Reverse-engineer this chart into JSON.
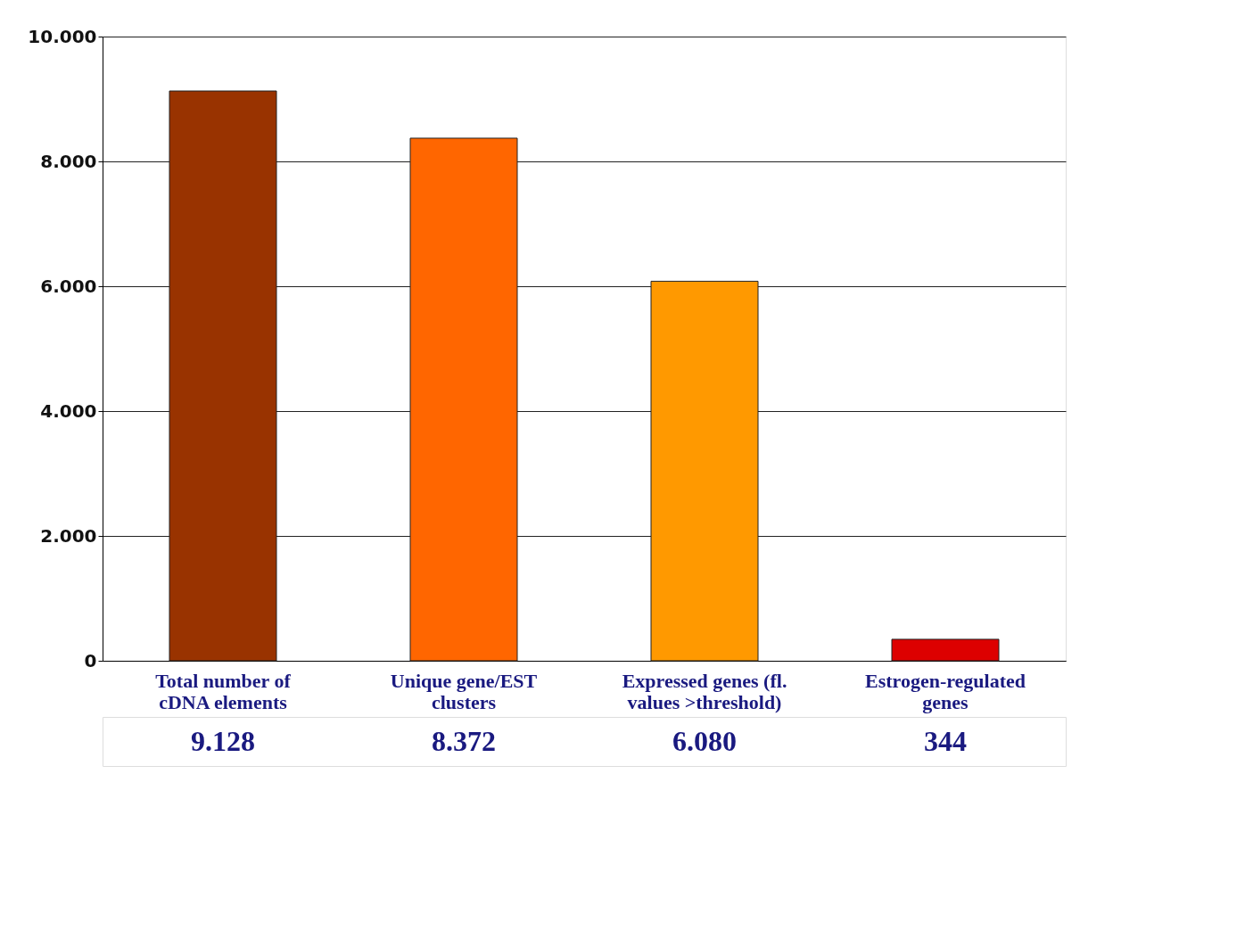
{
  "chart_data": {
    "type": "bar",
    "categories": [
      "Total number of cDNA elements",
      "Unique gene/EST clusters",
      "Expressed genes (fl. values >threshold)",
      "Estrogen-regulated genes"
    ],
    "values": [
      9128,
      8372,
      6080,
      344
    ],
    "colors": [
      "#993300",
      "#ff6600",
      "#ff9900",
      "#dd0000"
    ],
    "value_labels": [
      "9.128",
      "8.372",
      "6.080",
      "344"
    ],
    "ylim": [
      0,
      10000
    ],
    "yticks": [
      0,
      {
        "value": 2000,
        "label": "2.000"
      },
      {
        "value": 4000,
        "label": "4.000"
      },
      {
        "value": 6000,
        "label": "6.000"
      },
      {
        "value": 8000,
        "label": "8.000"
      },
      {
        "value": 10000,
        "label": "10.000"
      }
    ],
    "grid": "y"
  }
}
